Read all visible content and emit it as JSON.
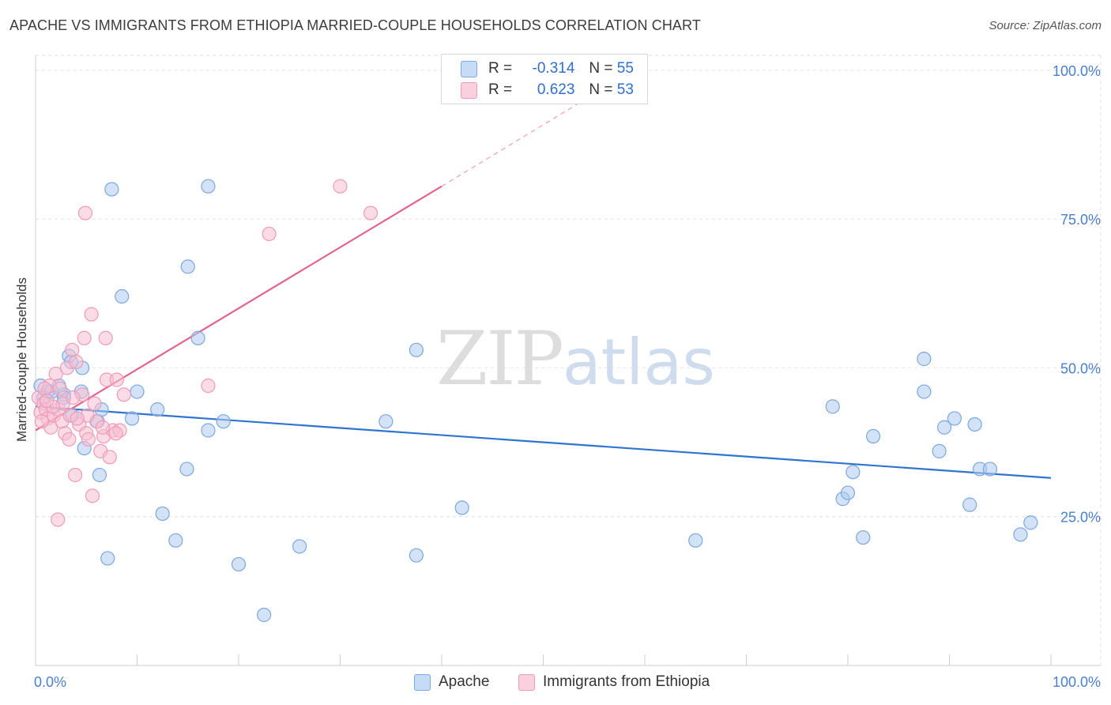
{
  "header": {
    "title": "APACHE VS IMMIGRANTS FROM ETHIOPIA MARRIED-COUPLE HOUSEHOLDS CORRELATION CHART",
    "source": "Source: ZipAtlas.com"
  },
  "legend": {
    "series1": {
      "r_label": "R =",
      "r_value": "-0.314",
      "n_label": "N =",
      "n_value": "55"
    },
    "series2": {
      "r_label": "R =",
      "r_value": "0.623",
      "n_label": "N =",
      "n_value": "53"
    }
  },
  "watermark": {
    "zip": "ZIP",
    "atlas": "atlas"
  },
  "colors": {
    "apache_fill": "#aecbf0",
    "apache_stroke": "#7aa8df",
    "apache_line": "#2f74d0",
    "eth_fill": "#f7bfd1",
    "eth_stroke": "#ee9bb8",
    "eth_line": "#e2648e",
    "tick_text": "#4a7fcf",
    "grid": "#e2e2e2"
  },
  "chart_data": {
    "type": "scatter",
    "title": "APACHE VS IMMIGRANTS FROM ETHIOPIA MARRIED-COUPLE HOUSEHOLDS CORRELATION CHART",
    "xlabel": "",
    "ylabel": "Married-couple Households",
    "xlim": [
      0,
      100
    ],
    "ylim": [
      0,
      102.5
    ],
    "x_tick_labels": [
      "0.0%",
      "100.0%"
    ],
    "y_ticks": [
      25,
      50,
      75,
      100
    ],
    "y_tick_labels": [
      "25.0%",
      "50.0%",
      "75.0%",
      "100.0%"
    ],
    "series": [
      {
        "name": "Apache",
        "r": -0.314,
        "n": 55,
        "trend": {
          "x0": 0,
          "y0": 43.5,
          "x1": 100,
          "y1": 31.5
        },
        "points": [
          [
            0.5,
            47
          ],
          [
            0.8,
            45
          ],
          [
            1.2,
            46
          ],
          [
            1.6,
            46
          ],
          [
            2.3,
            47
          ],
          [
            2.8,
            45.5
          ],
          [
            3.3,
            52
          ],
          [
            4.6,
            50
          ],
          [
            4.5,
            46
          ],
          [
            3.5,
            51
          ],
          [
            6.5,
            43
          ],
          [
            7.5,
            80
          ],
          [
            8.5,
            62
          ],
          [
            9.5,
            41.5
          ],
          [
            10,
            46
          ],
          [
            12,
            43
          ],
          [
            15,
            67
          ],
          [
            17,
            80.5
          ],
          [
            16,
            55
          ],
          [
            17,
            39.5
          ],
          [
            18.5,
            41
          ],
          [
            2.8,
            45
          ],
          [
            3.6,
            42
          ],
          [
            6.1,
            41
          ],
          [
            6.3,
            32
          ],
          [
            7.1,
            18
          ],
          [
            12.5,
            25.5
          ],
          [
            13.8,
            21
          ],
          [
            14.9,
            33
          ],
          [
            20,
            17
          ],
          [
            22.5,
            8.5
          ],
          [
            26,
            20
          ],
          [
            34.5,
            41
          ],
          [
            37.5,
            53
          ],
          [
            37.5,
            18.5
          ],
          [
            42,
            26.5
          ],
          [
            65,
            21
          ],
          [
            78.5,
            43.5
          ],
          [
            79.5,
            28
          ],
          [
            80,
            29
          ],
          [
            80.5,
            32.5
          ],
          [
            81.5,
            21.5
          ],
          [
            82.5,
            38.5
          ],
          [
            87.5,
            51.5
          ],
          [
            87.5,
            46
          ],
          [
            89,
            36
          ],
          [
            89.5,
            40
          ],
          [
            90.5,
            41.5
          ],
          [
            92,
            27
          ],
          [
            93,
            33
          ],
          [
            94,
            33
          ],
          [
            92.5,
            40.5
          ],
          [
            97,
            22
          ],
          [
            98,
            24
          ],
          [
            4.8,
            36.5
          ]
        ]
      },
      {
        "name": "Immigrants from Ethiopia",
        "r": 0.623,
        "n": 53,
        "trend": {
          "x0": 0,
          "y0": 39.5,
          "x1": 40,
          "y1": 80.5,
          "dash_x1": 55,
          "dash_y1": 96
        },
        "points": [
          [
            0.3,
            45
          ],
          [
            0.5,
            42.5
          ],
          [
            0.8,
            44
          ],
          [
            1,
            43
          ],
          [
            1.2,
            41.5
          ],
          [
            1.5,
            40
          ],
          [
            1.8,
            42
          ],
          [
            2,
            49
          ],
          [
            2.3,
            43
          ],
          [
            2.6,
            41
          ],
          [
            2.9,
            39
          ],
          [
            3.1,
            50
          ],
          [
            3.4,
            42
          ],
          [
            3.6,
            53
          ],
          [
            4,
            51
          ],
          [
            4.3,
            40.5
          ],
          [
            4.6,
            45.5
          ],
          [
            4.8,
            55
          ],
          [
            5,
            39
          ],
          [
            5.2,
            38
          ],
          [
            5.5,
            59
          ],
          [
            5.8,
            44
          ],
          [
            6,
            41
          ],
          [
            6.4,
            36
          ],
          [
            6.7,
            38.5
          ],
          [
            7,
            48
          ],
          [
            7.3,
            35
          ],
          [
            7.6,
            39.5
          ],
          [
            8,
            48
          ],
          [
            8.3,
            39.5
          ],
          [
            8.7,
            45.5
          ],
          [
            4.9,
            76
          ],
          [
            2.2,
            24.5
          ],
          [
            3.9,
            32
          ],
          [
            5.6,
            28.5
          ],
          [
            17,
            47
          ],
          [
            23,
            72.5
          ],
          [
            30,
            80.5
          ],
          [
            33,
            76
          ],
          [
            1.4,
            47
          ],
          [
            2.7,
            44
          ],
          [
            3.3,
            38
          ],
          [
            6.9,
            55
          ],
          [
            3.7,
            45
          ],
          [
            2.4,
            46.5
          ],
          [
            0.6,
            41
          ],
          [
            0.9,
            46.5
          ],
          [
            1.7,
            43.5
          ],
          [
            5.1,
            42
          ],
          [
            6.6,
            40
          ],
          [
            7.9,
            39
          ],
          [
            1.1,
            44.5
          ],
          [
            4.1,
            41.5
          ]
        ]
      }
    ]
  },
  "axis": {
    "ylabel": "Married-couple Households",
    "x_left_label": "0.0%",
    "x_right_label": "100.0%"
  },
  "bottom_legend": {
    "series1": "Apache",
    "series2": "Immigrants from Ethiopia"
  }
}
